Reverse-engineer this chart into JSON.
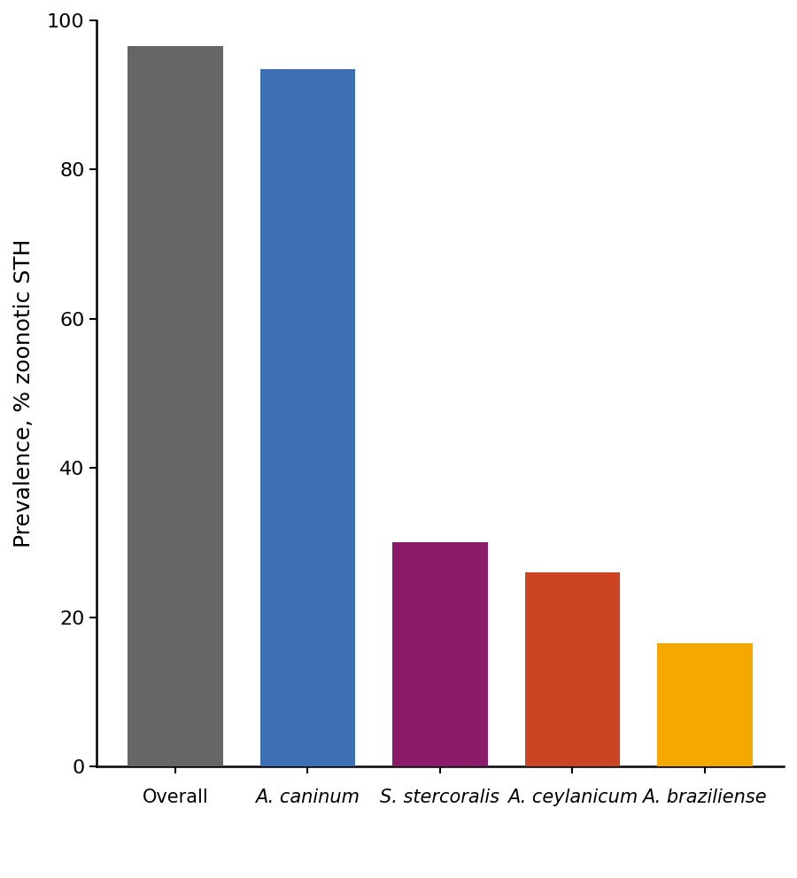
{
  "categories": [
    "Overall",
    "A. caninum",
    "S. stercoralis",
    "A. ceylanicum",
    "A. braziliense"
  ],
  "values": [
    96.5,
    93.5,
    30.0,
    26.0,
    16.5
  ],
  "bar_colors": [
    "#666666",
    "#3d6fb5",
    "#8b1a6b",
    "#cc4422",
    "#f5a800"
  ],
  "ylabel": "Prevalence, % zoonotic STH",
  "ylim": [
    0,
    100
  ],
  "yticks": [
    0,
    20,
    40,
    60,
    80,
    100
  ],
  "italic_labels": [
    false,
    true,
    true,
    true,
    true
  ],
  "background_color": "#ffffff",
  "ylabel_fontsize": 18,
  "tick_fontsize": 16,
  "xlabel_fontsize": 15,
  "bar_width": 0.72
}
